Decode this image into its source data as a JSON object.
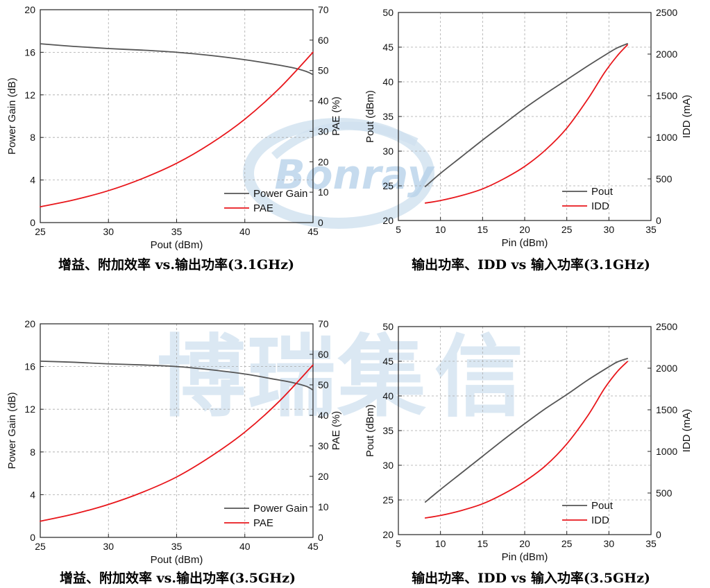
{
  "watermark": {
    "logo_text": "Bonray",
    "chars": [
      "博",
      "瑞",
      "集",
      "信"
    ],
    "color": "#cfe1ef"
  },
  "chart_data": [
    {
      "type": "line",
      "caption": "增益、附加效率 vs.输出功率(3.1GHz)",
      "xlabel": "Pout (dBm)",
      "ylabel_left": "Power Gain (dB)",
      "ylabel_right": "PAE (%)",
      "xlim": [
        25,
        45
      ],
      "ylim_left": [
        0,
        20
      ],
      "ylim_right": [
        0,
        70
      ],
      "xticks": [
        25,
        30,
        35,
        40,
        45
      ],
      "yticks_left": [
        0,
        4,
        8,
        12,
        16,
        20
      ],
      "yticks_right": [
        0,
        10,
        20,
        30,
        40,
        50,
        60,
        70
      ],
      "legend_position": "bottom-right",
      "series": [
        {
          "name": "Power Gain",
          "axis": "left",
          "color": "#555555",
          "x": [
            25,
            27.5,
            30,
            32.5,
            35,
            37.5,
            40,
            42,
            43.5,
            44.5,
            45
          ],
          "y": [
            16.8,
            16.55,
            16.35,
            16.2,
            16.0,
            15.7,
            15.3,
            14.9,
            14.55,
            14.2,
            13.9
          ]
        },
        {
          "name": "PAE",
          "axis": "right",
          "color": "#e8161b",
          "x": [
            25,
            27.5,
            30,
            32.5,
            35,
            37.5,
            40,
            42.5,
            45
          ],
          "y": [
            5.2,
            7.5,
            10.5,
            14.5,
            19.5,
            26,
            34,
            44,
            56
          ]
        }
      ]
    },
    {
      "type": "line",
      "caption": "输出功率、IDD vs  输入功率(3.1GHz)",
      "xlabel": "Pin (dBm)",
      "ylabel_left": "Pout (dBm)",
      "ylabel_right": "IDD (mA)",
      "xlim": [
        5,
        35
      ],
      "ylim_left": [
        20,
        50
      ],
      "ylim_right": [
        0,
        2500
      ],
      "xticks": [
        5,
        10,
        15,
        20,
        25,
        30,
        35
      ],
      "yticks_left": [
        20,
        25,
        30,
        35,
        40,
        45,
        50
      ],
      "yticks_right": [
        0,
        500,
        1000,
        1500,
        2000,
        2500
      ],
      "legend_position": "bottom-right",
      "series": [
        {
          "name": "Pout",
          "axis": "left",
          "color": "#555555",
          "x": [
            8.2,
            10,
            12.5,
            15,
            17.5,
            20,
            22.5,
            25,
            27.5,
            30,
            31,
            32.2
          ],
          "y": [
            24.9,
            26.8,
            29.2,
            31.6,
            33.9,
            36.2,
            38.3,
            40.3,
            42.3,
            44.2,
            44.9,
            45.5
          ]
        },
        {
          "name": "IDD",
          "axis": "right",
          "color": "#e8161b",
          "x": [
            8.2,
            10,
            12.5,
            15,
            17.5,
            20,
            22.5,
            25,
            27.5,
            29.5,
            31,
            32.2
          ],
          "y": [
            210,
            240,
            300,
            380,
            500,
            650,
            850,
            1110,
            1460,
            1780,
            1980,
            2110
          ]
        }
      ]
    },
    {
      "type": "line",
      "caption": "增益、附加效率 vs.输出功率(3.5GHz)",
      "xlabel": "Pout (dBm)",
      "ylabel_left": "Power Gain (dB)",
      "ylabel_right": "PAE (%)",
      "xlim": [
        25,
        45
      ],
      "ylim_left": [
        0,
        20
      ],
      "ylim_right": [
        0,
        70
      ],
      "xticks": [
        25,
        30,
        35,
        40,
        45
      ],
      "yticks_left": [
        0,
        4,
        8,
        12,
        16,
        20
      ],
      "yticks_right": [
        0,
        10,
        20,
        30,
        40,
        50,
        60,
        70
      ],
      "legend_position": "bottom-right",
      "series": [
        {
          "name": "Power Gain",
          "axis": "left",
          "color": "#555555",
          "x": [
            25,
            27.5,
            30,
            32.5,
            35,
            37.5,
            40,
            42,
            43.5,
            44.5,
            45
          ],
          "y": [
            16.5,
            16.4,
            16.25,
            16.15,
            16.0,
            15.7,
            15.3,
            14.85,
            14.5,
            14.15,
            13.8
          ]
        },
        {
          "name": "PAE",
          "axis": "right",
          "color": "#e8161b",
          "x": [
            25,
            27.5,
            30,
            32.5,
            35,
            37.5,
            40,
            42.5,
            45
          ],
          "y": [
            5.3,
            7.7,
            10.8,
            14.8,
            19.8,
            26.5,
            34.5,
            44.5,
            56.5
          ]
        }
      ]
    },
    {
      "type": "line",
      "caption": "输出功率、IDD vs  输入功率(3.5GHz)",
      "xlabel": "Pin (dBm)",
      "ylabel_left": "Pout (dBm)",
      "ylabel_right": "IDD (mA)",
      "xlim": [
        5,
        35
      ],
      "ylim_left": [
        20,
        50
      ],
      "ylim_right": [
        0,
        2500
      ],
      "xticks": [
        5,
        10,
        15,
        20,
        25,
        30,
        35
      ],
      "yticks_left": [
        20,
        25,
        30,
        35,
        40,
        45,
        50
      ],
      "yticks_right": [
        0,
        500,
        1000,
        1500,
        2000,
        2500
      ],
      "legend_position": "bottom-right",
      "series": [
        {
          "name": "Pout",
          "axis": "left",
          "color": "#555555",
          "x": [
            8.2,
            10,
            12.5,
            15,
            17.5,
            20,
            22.5,
            25,
            27.5,
            30,
            31,
            32.2
          ],
          "y": [
            24.7,
            26.5,
            28.9,
            31.3,
            33.7,
            36.0,
            38.2,
            40.2,
            42.3,
            44.2,
            44.9,
            45.4
          ]
        },
        {
          "name": "IDD",
          "axis": "right",
          "color": "#e8161b",
          "x": [
            8.2,
            10,
            12.5,
            15,
            17.5,
            20,
            22.5,
            25,
            27.5,
            29.5,
            31,
            32.2
          ],
          "y": [
            200,
            230,
            290,
            370,
            490,
            640,
            830,
            1090,
            1430,
            1760,
            1960,
            2080
          ]
        }
      ]
    }
  ]
}
